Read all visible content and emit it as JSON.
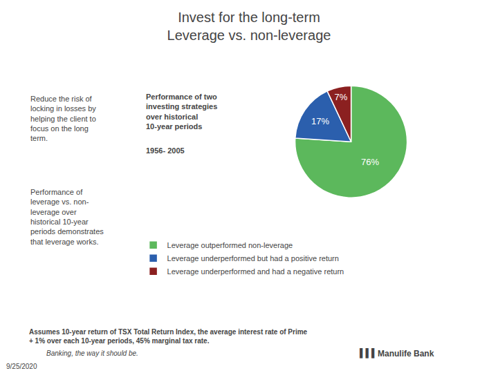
{
  "chart_data": {
    "type": "pie",
    "title": "Invest for the long-term\nLeverage vs. non-leverage",
    "subtitle": "1956- 2005",
    "categories": [
      "Leverage outperformed non-leverage",
      "Leverage underperformed but had a positive return",
      "Leverage underperformed and had a negative return"
    ],
    "values": [
      76,
      17,
      7
    ],
    "value_labels": [
      "76%",
      "17%",
      "7%"
    ],
    "colors": [
      "#5cb85c",
      "#2b5fad",
      "#8b2020"
    ],
    "data_labels": true,
    "legend": "bottom",
    "annotations": [
      "Reduce the risk of\nlocking in losses by\nhelping the client to\nfocus on the long\nterm.",
      "Performance of\nleverage vs. non-\nleverage over\nhistorical 10-year\nperiods demonstrates\nthat leverage works.",
      "Performance of two\ninvesting strategies\nover historical\n10-year periods",
      "Assumes 10-year return of TSX Total Return Index, the average interest rate of Prime\n+ 1% over each 10-year periods, 45% marginal tax rate.",
      "Banking, the way it should be.",
      "▌▌▌",
      "Manulife Bank",
      "9/25/2020"
    ]
  }
}
